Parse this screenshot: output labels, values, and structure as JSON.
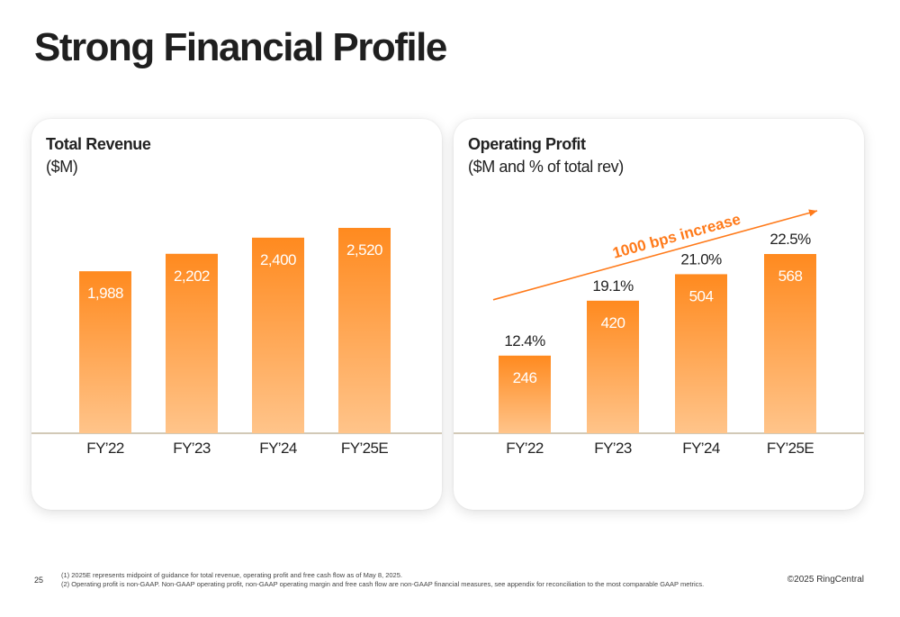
{
  "page": {
    "title": "Strong Financial Profile",
    "page_number": "25",
    "footnotes": [
      "(1)  2025E represents midpoint of guidance for total revenue, operating profit and free cash flow as of May  8, 2025.",
      "(2) Operating profit is non-GAAP. Non-GAAP operating profit, non-GAAP operating margin and free cash flow are non-GAAP financial measures, see appendix for reconciliation to the most comparable GAAP metrics."
    ],
    "copyright": "©2025 RingCentral"
  },
  "colors": {
    "bar_top": "#FF8A1F",
    "bar_bottom": "#FFC48A",
    "accent": "#FF7A1A",
    "baseline": "#B8A98C"
  },
  "chart_data": [
    {
      "type": "bar",
      "title": "Total Revenue",
      "subtitle": "($M)",
      "categories": [
        "FY’22",
        "FY’23",
        "FY’24",
        "FY’25E"
      ],
      "values": [
        1988,
        2202,
        2400,
        2520
      ],
      "value_labels": [
        "1,988",
        "2,202",
        "2,400",
        "2,520"
      ],
      "ylim": [
        0,
        2520
      ],
      "grid": false,
      "legend": "none"
    },
    {
      "type": "bar",
      "title": "Operating Profit",
      "subtitle": "($M and % of total rev)",
      "categories": [
        "FY’22",
        "FY’23",
        "FY’24",
        "FY’25E"
      ],
      "values": [
        246,
        420,
        504,
        568
      ],
      "value_labels": [
        "246",
        "420",
        "504",
        "568"
      ],
      "margins": [
        "12.4%",
        "19.1%",
        "21.0%",
        "22.5%"
      ],
      "ylim": [
        0,
        568
      ],
      "annotation": "1000 bps increase",
      "grid": false,
      "legend": "none"
    }
  ]
}
